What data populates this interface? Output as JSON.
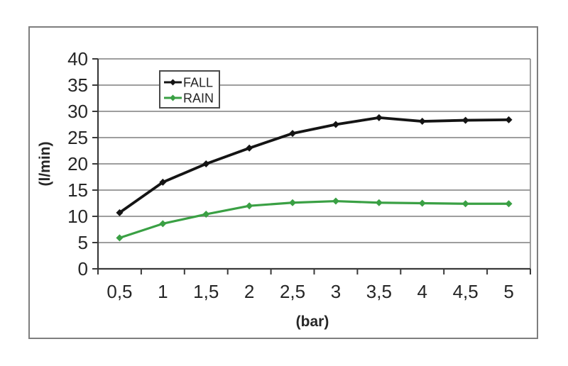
{
  "chart_data": {
    "type": "line",
    "x": [
      0.5,
      1,
      1.5,
      2,
      2.5,
      3,
      3.5,
      4,
      4.5,
      5
    ],
    "x_tick_labels": [
      "0,5",
      "1",
      "1,5",
      "2",
      "2,5",
      "3",
      "3,5",
      "4",
      "4,5",
      "5"
    ],
    "y_tick_labels": [
      "0",
      "5",
      "10",
      "15",
      "20",
      "25",
      "30",
      "35",
      "40"
    ],
    "ylim": [
      0,
      40
    ],
    "y_tick_step": 5,
    "xlabel": "(bar)",
    "ylabel": "(l/min)",
    "grid": true,
    "legend_position": "top-left-inside",
    "marker": "diamond",
    "series": [
      {
        "name": "FALL",
        "color": "#141414",
        "values": [
          10.7,
          16.5,
          20.0,
          23.0,
          25.8,
          27.5,
          28.8,
          28.1,
          28.3,
          28.4
        ]
      },
      {
        "name": "RAIN",
        "color": "#3aa044",
        "values": [
          5.9,
          8.6,
          10.4,
          12.0,
          12.6,
          12.9,
          12.6,
          12.5,
          12.4,
          12.4
        ]
      }
    ],
    "grid_color": "#909090",
    "axis_color": "#3a3a3a"
  }
}
